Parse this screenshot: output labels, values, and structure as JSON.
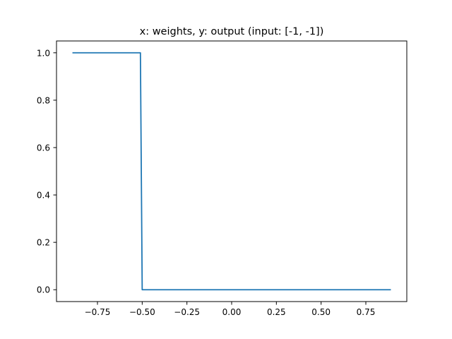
{
  "chart_data": {
    "type": "line",
    "title": "x: weights, y: output (input: [-1, -1])",
    "xlabel": "",
    "ylabel": "",
    "xlim": [
      -0.979,
      0.979
    ],
    "ylim": [
      -0.05,
      1.05
    ],
    "x_ticks": [
      -0.75,
      -0.5,
      -0.25,
      0.0,
      0.25,
      0.5,
      0.75
    ],
    "x_tick_labels": [
      "−0.75",
      "−0.50",
      "−0.25",
      "0.00",
      "0.25",
      "0.50",
      "0.75"
    ],
    "y_ticks": [
      0.0,
      0.2,
      0.4,
      0.6,
      0.8,
      1.0
    ],
    "y_tick_labels": [
      "0.0",
      "0.2",
      "0.4",
      "0.6",
      "0.8",
      "1.0"
    ],
    "grid": false,
    "legend": "none",
    "series": [
      {
        "color": "#1f77b4",
        "x": [
          -0.89,
          -0.51,
          -0.5,
          0.89
        ],
        "y": [
          1.0,
          1.0,
          0.0,
          0.0
        ]
      }
    ]
  }
}
